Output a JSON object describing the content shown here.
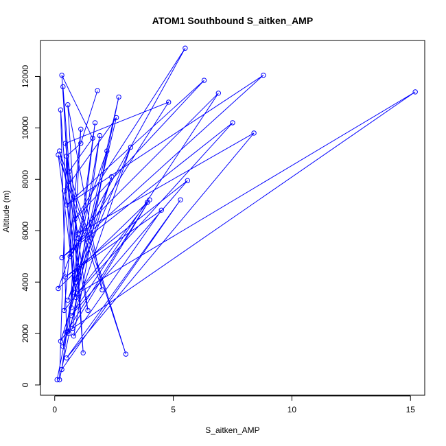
{
  "chart_data": {
    "type": "line",
    "title": "ATOM1 Southbound S_aitken_AMP",
    "xlabel": "S_aitken_AMP",
    "ylabel": "Altitude (m)",
    "xlim": [
      -0.6,
      15.6
    ],
    "ylim": [
      -400,
      13400
    ],
    "xticks": [
      0,
      5,
      10,
      15
    ],
    "yticks": [
      0,
      2000,
      4000,
      6000,
      8000,
      10000,
      12000
    ],
    "color": "#0000ff",
    "marker": "open-circle",
    "grid": false,
    "series": [
      {
        "x": [
          0.1,
          0.5,
          0.25,
          0.8,
          0.35,
          1.2,
          0.55,
          2.0,
          0.15,
          0.9,
          0.3,
          1.6,
          0.6,
          3.0,
          0.2,
          1.0,
          0.7,
          2.6,
          0.4,
          1.4,
          0.45,
          4.8,
          0.65,
          5.5,
          0.85,
          6.3,
          0.5,
          8.8,
          0.3,
          7.5,
          0.95,
          15.2,
          0.75,
          1.9,
          0.35,
          3.2,
          0.55,
          2.4,
          0.25,
          4.0,
          0.6,
          1.1,
          0.4,
          3.9,
          0.15,
          2.2,
          0.8,
          4.5,
          0.45,
          5.6,
          0.7,
          6.9,
          1.0,
          8.4,
          0.5,
          5.3,
          0.3,
          1.7,
          0.9,
          2.7,
          0.2,
          0.5,
          1.1,
          1.8
        ],
        "y": [
          200,
          2050,
          10700,
          3600,
          11600,
          1250,
          10900,
          3700,
          8950,
          3400,
          12050,
          9600,
          8300,
          1200,
          9100,
          5700,
          3000,
          10400,
          7550,
          2900,
          9400,
          11000,
          5000,
          13100,
          6450,
          11850,
          7000,
          12050,
          4950,
          10200,
          3550,
          11400,
          2200,
          9700,
          1500,
          9250,
          3300,
          8100,
          1700,
          7200,
          2000,
          9950,
          2900,
          7100,
          3750,
          9100,
          1900,
          6800,
          4200,
          7950,
          2700,
          11350,
          5900,
          9800,
          1050,
          7200,
          600,
          10200,
          4000,
          11200,
          200,
          8900,
          9400,
          11450
        ]
      }
    ]
  }
}
